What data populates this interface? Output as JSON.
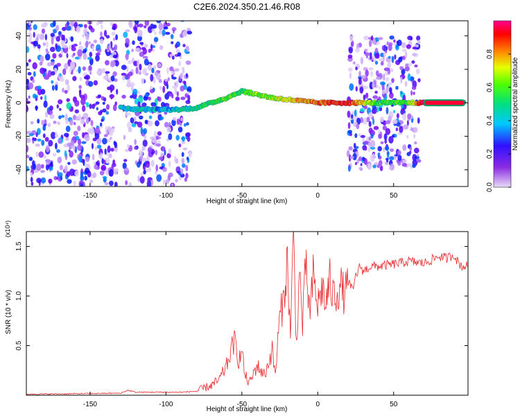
{
  "title": "C2E6.2024.350.21.46.R08",
  "chart_data": [
    {
      "type": "heatmap",
      "xlabel": "Height of straight line (km)",
      "ylabel": "Frequency (Hz)",
      "xlim": [
        -192,
        99
      ],
      "ylim": [
        -50,
        49
      ],
      "x_ticks": [
        -150,
        -100,
        -50,
        0,
        50
      ],
      "y_ticks": [
        -40,
        -20,
        0,
        20,
        40
      ],
      "grid": false,
      "colorbar": {
        "label": "Normalized spectral amplitude",
        "range": [
          0,
          1
        ],
        "ticks": [
          "0.0",
          "0.2",
          "0.4",
          "0.6",
          "0.8"
        ],
        "colors": [
          "#e0d0f5",
          "#7000ff",
          "#0010ff",
          "#00c8ff",
          "#00e070",
          "#40ff00",
          "#e8ff00",
          "#ff8000",
          "#ff0000",
          "#ff0090"
        ]
      },
      "ridge": [
        {
          "x": -130,
          "y": -3,
          "a": 0.35
        },
        {
          "x": -120,
          "y": -4,
          "a": 0.4
        },
        {
          "x": -100,
          "y": -4,
          "a": 0.3
        },
        {
          "x": -90,
          "y": -4,
          "a": 0.4
        },
        {
          "x": -80,
          "y": -3,
          "a": 0.45
        },
        {
          "x": -70,
          "y": 0,
          "a": 0.5
        },
        {
          "x": -60,
          "y": 3,
          "a": 0.55
        },
        {
          "x": -50,
          "y": 7,
          "a": 0.5
        },
        {
          "x": -40,
          "y": 5,
          "a": 0.6
        },
        {
          "x": -30,
          "y": 3,
          "a": 0.6
        },
        {
          "x": -20,
          "y": 2,
          "a": 0.7
        },
        {
          "x": -10,
          "y": 1,
          "a": 0.75
        },
        {
          "x": 0,
          "y": 0,
          "a": 0.8
        },
        {
          "x": 10,
          "y": 0,
          "a": 0.85
        },
        {
          "x": 20,
          "y": 0,
          "a": 0.9
        },
        {
          "x": 40,
          "y": 0,
          "a": 0.5
        },
        {
          "x": 60,
          "y": 0,
          "a": 0.55
        },
        {
          "x": 70,
          "y": 0,
          "a": 0.95
        },
        {
          "x": 97,
          "y": 0,
          "a": 0.95
        }
      ]
    },
    {
      "type": "line",
      "xlabel": "Height of straight line (km)",
      "ylabel": "SNR (10 * v/v)",
      "y_unit": "(x10⁴)",
      "xlim": [
        -192,
        99
      ],
      "ylim": [
        0,
        1.65
      ],
      "x_ticks": [
        -150,
        -100,
        -50,
        0,
        50
      ],
      "y_ticks": [
        0.5,
        1.0,
        1.5
      ],
      "y_tick_labels": [
        "0.5",
        "1.0",
        "1.5"
      ],
      "grid": false,
      "color": "#e8262a",
      "series": [
        {
          "x": [
            -192,
            -160,
            -130,
            -125,
            -120,
            -100,
            -90,
            -80,
            -75,
            -70,
            -65,
            -60,
            -55,
            -52,
            -50,
            -48,
            -45,
            -40,
            -35,
            -30,
            -28,
            -25,
            -23,
            -20,
            -18,
            -16,
            -14,
            -12,
            -10,
            -8,
            -5,
            -3,
            0,
            3,
            5,
            8,
            10,
            13,
            15,
            18,
            20,
            23,
            25,
            28,
            30,
            35,
            40,
            50,
            60,
            70,
            80,
            85,
            90,
            92,
            95,
            99
          ],
          "y": [
            0.01,
            0.015,
            0.02,
            0.05,
            0.03,
            0.03,
            0.03,
            0.04,
            0.07,
            0.1,
            0.15,
            0.3,
            0.55,
            0.35,
            0.45,
            0.2,
            0.12,
            0.3,
            0.2,
            0.45,
            0.2,
            0.8,
            0.9,
            1.35,
            0.6,
            1.6,
            0.5,
            1.25,
            0.7,
            1.3,
            0.8,
            1.2,
            0.9,
            1.1,
            0.9,
            1.15,
            1.0,
            1.05,
            1.1,
            1.0,
            1.15,
            1.05,
            1.2,
            1.3,
            1.25,
            1.3,
            1.3,
            1.32,
            1.35,
            1.33,
            1.4,
            1.38,
            1.42,
            1.35,
            1.3,
            1.3
          ]
        }
      ]
    }
  ]
}
